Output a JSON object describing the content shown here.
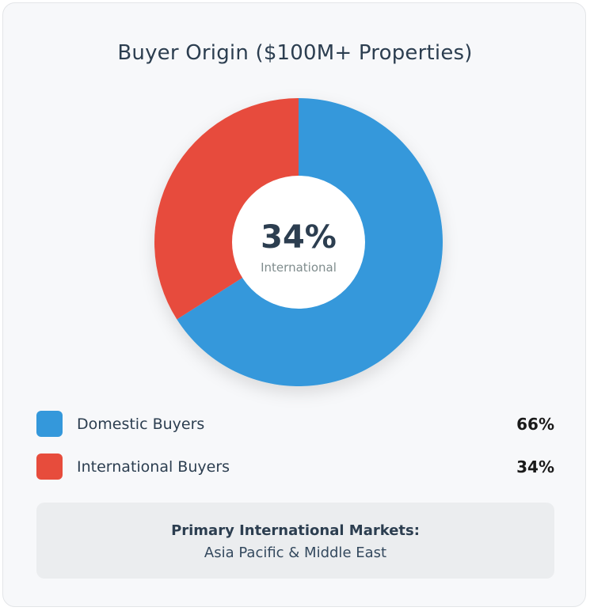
{
  "colors": {
    "domestic": "#3498db",
    "international": "#e74c3c",
    "center": "#ffffff"
  },
  "center": {
    "value": "34%",
    "label": "International"
  },
  "legend": [
    {
      "label": "Domestic Buyers",
      "value": "66%"
    },
    {
      "label": "International Buyers",
      "value": "34%"
    }
  ],
  "markets": {
    "title": "Primary International Markets:",
    "value": "Asia Pacific & Middle East"
  },
  "chart_data": {
    "type": "pie",
    "title": "Buyer Origin ($100M+ Properties)",
    "categories": [
      "Domestic Buyers",
      "International Buyers"
    ],
    "values": [
      66,
      34
    ],
    "units": "%",
    "donut": true,
    "legend_placement": "bottom"
  }
}
